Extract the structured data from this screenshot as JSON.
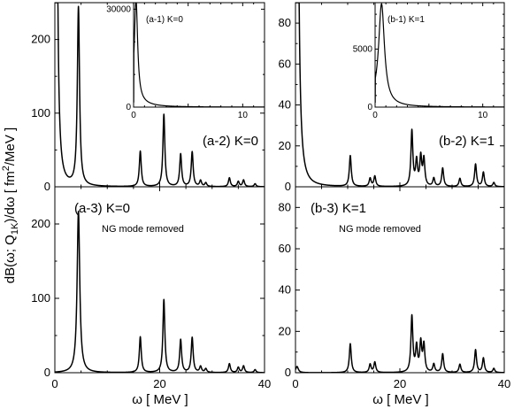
{
  "figure": {
    "ylabel": "dB(ω; Q",
    "ylabel_sub": "1K",
    "ylabel_rest": ")/dω [ fm",
    "ylabel_sup": "2",
    "ylabel_end": "/MeV ]",
    "xlabel": "ω [ MeV ]"
  },
  "chart_data": [
    {
      "id": "a-2",
      "type": "line",
      "label": "(a-2) K=0",
      "xlim": [
        0,
        40
      ],
      "ylim": [
        0,
        250
      ],
      "xticks": [],
      "yticks": [
        0,
        100,
        200
      ],
      "has_ng_mode": true,
      "ng_amplitude": 2.6,
      "ng_peak": {
        "x": 4.5,
        "y": 242,
        "width": 0.25
      },
      "peaks": [
        {
          "x": 16.3,
          "y": 48
        },
        {
          "x": 20.8,
          "y": 98
        },
        {
          "x": 24.0,
          "y": 44
        },
        {
          "x": 26.2,
          "y": 47
        },
        {
          "x": 27.8,
          "y": 8
        },
        {
          "x": 28.8,
          "y": 5
        },
        {
          "x": 33.3,
          "y": 12
        },
        {
          "x": 35.0,
          "y": 7
        },
        {
          "x": 36.0,
          "y": 9
        },
        {
          "x": 38.2,
          "y": 4
        }
      ]
    },
    {
      "id": "b-2",
      "type": "line",
      "label": "(b-2) K=1",
      "xlim": [
        0,
        40
      ],
      "ylim": [
        0,
        90
      ],
      "xticks": [],
      "yticks": [
        0,
        20,
        40,
        60,
        80
      ],
      "has_ng_mode": true,
      "ng_amplitude": 1.4,
      "ng_peak": null,
      "peaks": [
        {
          "x": 10.5,
          "y": 15
        },
        {
          "x": 14.3,
          "y": 4
        },
        {
          "x": 15.2,
          "y": 5
        },
        {
          "x": 22.3,
          "y": 27
        },
        {
          "x": 23.2,
          "y": 12
        },
        {
          "x": 24.0,
          "y": 14
        },
        {
          "x": 24.6,
          "y": 13
        },
        {
          "x": 26.5,
          "y": 4
        },
        {
          "x": 28.2,
          "y": 9
        },
        {
          "x": 31.5,
          "y": 4
        },
        {
          "x": 34.5,
          "y": 11
        },
        {
          "x": 36.0,
          "y": 7
        },
        {
          "x": 38.0,
          "y": 2
        }
      ]
    },
    {
      "id": "a-3",
      "type": "line",
      "label": "(a-3) K=0",
      "note": "NG mode removed",
      "xlim": [
        0,
        40
      ],
      "ylim": [
        0,
        250
      ],
      "xticks": [
        0,
        20,
        40
      ],
      "yticks": [
        0,
        100,
        200
      ],
      "has_ng_mode": false,
      "ng_amplitude": 0,
      "ng_peak": {
        "x": 4.5,
        "y": 217,
        "width": 0.3
      },
      "peaks": [
        {
          "x": 16.3,
          "y": 48
        },
        {
          "x": 20.8,
          "y": 98
        },
        {
          "x": 24.0,
          "y": 44
        },
        {
          "x": 26.2,
          "y": 47
        },
        {
          "x": 27.8,
          "y": 8
        },
        {
          "x": 28.8,
          "y": 5
        },
        {
          "x": 33.3,
          "y": 12
        },
        {
          "x": 35.0,
          "y": 7
        },
        {
          "x": 36.0,
          "y": 9
        },
        {
          "x": 38.2,
          "y": 4
        }
      ]
    },
    {
      "id": "b-3",
      "type": "line",
      "label": "(b-3) K=1",
      "note": "NG mode removed",
      "xlim": [
        0,
        40
      ],
      "ylim": [
        0,
        90
      ],
      "xticks": [
        0,
        20,
        40
      ],
      "yticks": [
        0,
        20,
        40,
        60,
        80
      ],
      "has_ng_mode": false,
      "ng_amplitude": 0,
      "ng_peak": {
        "x": 0.3,
        "y": 3,
        "width": 0.3
      },
      "peaks": [
        {
          "x": 10.5,
          "y": 14
        },
        {
          "x": 14.3,
          "y": 4
        },
        {
          "x": 15.2,
          "y": 5
        },
        {
          "x": 22.3,
          "y": 27
        },
        {
          "x": 23.2,
          "y": 12
        },
        {
          "x": 24.0,
          "y": 14
        },
        {
          "x": 24.6,
          "y": 13
        },
        {
          "x": 26.5,
          "y": 4
        },
        {
          "x": 28.2,
          "y": 9
        },
        {
          "x": 31.5,
          "y": 4
        },
        {
          "x": 34.5,
          "y": 11
        },
        {
          "x": 36.0,
          "y": 7
        },
        {
          "x": 38.0,
          "y": 2
        }
      ]
    },
    {
      "id": "a-1",
      "type": "line",
      "label": "(a-1) K=0",
      "inset_of": "a-2",
      "xlim": [
        0,
        12
      ],
      "ylim": [
        0,
        32000
      ],
      "xticks": [
        0,
        10
      ],
      "yticks": [
        0,
        30000
      ],
      "peak": {
        "x": 0.22,
        "y": 31500,
        "width": 0.18
      }
    },
    {
      "id": "b-1",
      "type": "line",
      "label": "(b-1) K=1",
      "inset_of": "b-2",
      "xlim": [
        0,
        12
      ],
      "ylim": [
        0,
        9000
      ],
      "xticks": [
        0,
        10
      ],
      "yticks": [
        0,
        5000
      ],
      "peak": {
        "x": 0.6,
        "y": 8500,
        "width": 0.32
      }
    }
  ]
}
